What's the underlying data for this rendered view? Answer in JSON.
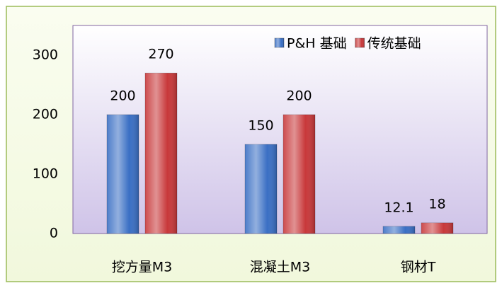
{
  "chart_data": {
    "type": "bar",
    "categories": [
      "挖方量M3",
      "混凝土M3",
      "钢材T"
    ],
    "series": [
      {
        "name": "P&H 基础",
        "color": "#3a6fc4",
        "values": [
          200,
          150,
          12.1
        ]
      },
      {
        "name": "传统基础",
        "color": "#c8383a",
        "values": [
          270,
          200,
          18
        ]
      }
    ],
    "ylim": [
      0,
      350
    ],
    "yticks": [
      0,
      100,
      200,
      300
    ],
    "grid": false,
    "legend": "top-right"
  }
}
